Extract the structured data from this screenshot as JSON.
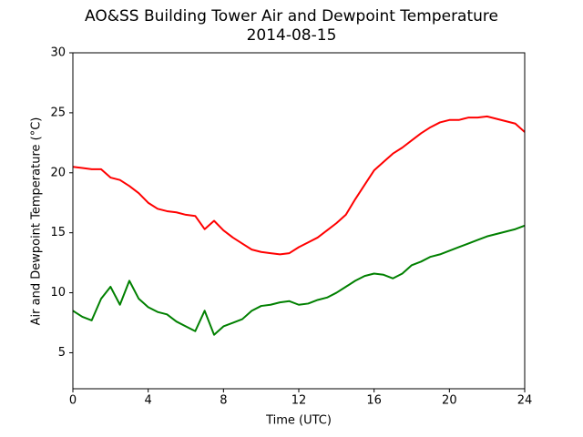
{
  "chart_data": {
    "type": "line",
    "title": "AO&SS Building Tower Air and Dewpoint Temperature",
    "subtitle": "2014-08-15",
    "x_label": "Time (UTC)",
    "y_label": "Air and Dewpoint Temperature (°C)",
    "x": [
      0,
      0.5,
      1,
      1.5,
      2,
      2.5,
      3,
      3.5,
      4,
      4.5,
      5,
      5.5,
      6,
      6.5,
      7,
      7.5,
      8,
      8.5,
      9,
      9.5,
      10,
      10.5,
      11,
      11.5,
      12,
      12.5,
      13,
      13.5,
      14,
      14.5,
      15,
      15.5,
      16,
      16.5,
      17,
      17.5,
      18,
      18.5,
      19,
      19.5,
      20,
      20.5,
      21,
      21.5,
      22,
      22.5,
      23,
      23.5,
      24
    ],
    "series": [
      {
        "color": "#ff0000",
        "values": [
          20.5,
          20.4,
          20.3,
          20.3,
          19.6,
          19.4,
          18.9,
          18.3,
          17.5,
          17.0,
          16.8,
          16.7,
          16.5,
          16.4,
          15.3,
          16.0,
          15.2,
          14.6,
          14.1,
          13.6,
          13.4,
          13.3,
          13.2,
          13.3,
          13.8,
          14.2,
          14.6,
          15.2,
          15.8,
          16.5,
          17.8,
          19.0,
          20.2,
          20.9,
          21.6,
          22.1,
          22.7,
          23.3,
          23.8,
          24.2,
          24.4,
          24.4,
          24.6,
          24.6,
          24.7,
          24.5,
          24.3,
          24.1,
          23.4
        ]
      },
      {
        "color": "#008000",
        "values": [
          8.5,
          8.0,
          7.7,
          9.5,
          10.5,
          9.0,
          11.0,
          9.5,
          8.8,
          8.4,
          8.2,
          7.6,
          7.2,
          6.8,
          8.5,
          6.5,
          7.2,
          7.5,
          7.8,
          8.5,
          8.9,
          9.0,
          9.2,
          9.3,
          9.0,
          9.1,
          9.4,
          9.6,
          10.0,
          10.5,
          11.0,
          11.4,
          11.6,
          11.5,
          11.2,
          11.6,
          12.3,
          12.6,
          13.0,
          13.2,
          13.5,
          13.8,
          14.1,
          14.4,
          14.7,
          14.9,
          15.1,
          15.3,
          15.6
        ]
      }
    ],
    "xlim": [
      0,
      24
    ],
    "xticks": [
      0,
      4,
      8,
      12,
      16,
      20,
      24
    ],
    "ylim": [
      2,
      30
    ],
    "yticks": [
      5,
      10,
      15,
      20,
      25,
      30
    ]
  }
}
